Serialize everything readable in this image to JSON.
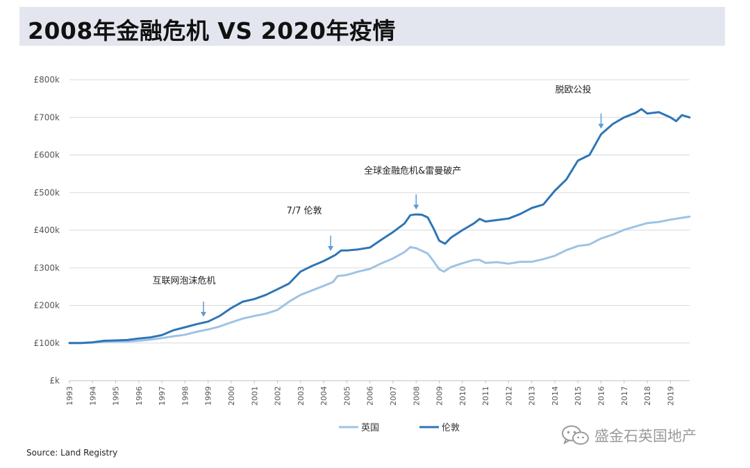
{
  "title": "2008年金融危机 VS 2020年疫情",
  "source": "Source: Land Registry",
  "watermark": "盛金石英国地产",
  "colors": {
    "uk": "#9dc3e6",
    "london": "#2e75b6",
    "arrow": "#5b9bd5",
    "grid": "#d9d9d9",
    "title_bg": "#e3e6ee"
  },
  "icons": {
    "watermark": "wechat-icon"
  },
  "chart_data": {
    "type": "line",
    "title": "2008年金融危机 VS 2020年疫情",
    "xlabel": "",
    "ylabel": "",
    "xlim": [
      1993,
      2019.83
    ],
    "ylim": [
      0,
      800000
    ],
    "yticks": [
      "£k",
      "£100k",
      "£200k",
      "£300k",
      "£400k",
      "£500k",
      "£600k",
      "£700k",
      "£800k"
    ],
    "xticks": [
      "1993",
      "1994",
      "1995",
      "1996",
      "1997",
      "1998",
      "1999",
      "2000",
      "2001",
      "2002",
      "2003",
      "2004",
      "2005",
      "2006",
      "2007",
      "2008",
      "2009",
      "2010",
      "2011",
      "2012",
      "2013",
      "2014",
      "2015",
      "2016",
      "2017",
      "2018",
      "2019"
    ],
    "grid": true,
    "legend": "bottom",
    "series": [
      {
        "name": "英国",
        "points": [
          [
            1993,
            100000
          ],
          [
            1993.5,
            100000
          ],
          [
            1994,
            101000
          ],
          [
            1994.5,
            103000
          ],
          [
            1995,
            104000
          ],
          [
            1995.5,
            104000
          ],
          [
            1996,
            106000
          ],
          [
            1996.5,
            109000
          ],
          [
            1997,
            113000
          ],
          [
            1997.5,
            118000
          ],
          [
            1998,
            122000
          ],
          [
            1998.5,
            130000
          ],
          [
            1999,
            136000
          ],
          [
            1999.5,
            144000
          ],
          [
            2000,
            155000
          ],
          [
            2000.5,
            165000
          ],
          [
            2001,
            172000
          ],
          [
            2001.5,
            178000
          ],
          [
            2002,
            188000
          ],
          [
            2002.5,
            210000
          ],
          [
            2003,
            228000
          ],
          [
            2003.5,
            240000
          ],
          [
            2004,
            252000
          ],
          [
            2004.4,
            262000
          ],
          [
            2004.6,
            278000
          ],
          [
            2005,
            281000
          ],
          [
            2005.5,
            290000
          ],
          [
            2006,
            297000
          ],
          [
            2006.5,
            312000
          ],
          [
            2007,
            325000
          ],
          [
            2007.5,
            342000
          ],
          [
            2007.75,
            355000
          ],
          [
            2008,
            352000
          ],
          [
            2008.25,
            345000
          ],
          [
            2008.5,
            338000
          ],
          [
            2008.75,
            318000
          ],
          [
            2009,
            296000
          ],
          [
            2009.2,
            290000
          ],
          [
            2009.5,
            302000
          ],
          [
            2010,
            312000
          ],
          [
            2010.5,
            321000
          ],
          [
            2010.75,
            321000
          ],
          [
            2011,
            313000
          ],
          [
            2011.5,
            315000
          ],
          [
            2012,
            311000
          ],
          [
            2012.5,
            316000
          ],
          [
            2013,
            316000
          ],
          [
            2013.5,
            323000
          ],
          [
            2014,
            332000
          ],
          [
            2014.5,
            347000
          ],
          [
            2015,
            358000
          ],
          [
            2015.5,
            362000
          ],
          [
            2016,
            378000
          ],
          [
            2016.5,
            388000
          ],
          [
            2017,
            401000
          ],
          [
            2017.5,
            410000
          ],
          [
            2018,
            419000
          ],
          [
            2018.5,
            422000
          ],
          [
            2019,
            428000
          ],
          [
            2019.5,
            433000
          ],
          [
            2019.83,
            436000
          ]
        ]
      },
      {
        "name": "伦敦",
        "points": [
          [
            1993,
            100000
          ],
          [
            1993.5,
            100000
          ],
          [
            1994,
            102000
          ],
          [
            1994.5,
            106000
          ],
          [
            1995,
            107000
          ],
          [
            1995.5,
            108000
          ],
          [
            1996,
            112000
          ],
          [
            1996.5,
            115000
          ],
          [
            1997,
            121000
          ],
          [
            1997.5,
            134000
          ],
          [
            1998,
            142000
          ],
          [
            1998.5,
            150000
          ],
          [
            1999,
            157000
          ],
          [
            1999.5,
            172000
          ],
          [
            2000,
            193000
          ],
          [
            2000.5,
            210000
          ],
          [
            2001,
            217000
          ],
          [
            2001.5,
            228000
          ],
          [
            2002,
            243000
          ],
          [
            2002.5,
            258000
          ],
          [
            2003,
            290000
          ],
          [
            2003.5,
            305000
          ],
          [
            2004,
            318000
          ],
          [
            2004.5,
            334000
          ],
          [
            2004.75,
            346000
          ],
          [
            2005,
            346000
          ],
          [
            2005.5,
            349000
          ],
          [
            2006,
            354000
          ],
          [
            2006.5,
            375000
          ],
          [
            2007,
            395000
          ],
          [
            2007.5,
            418000
          ],
          [
            2007.75,
            440000
          ],
          [
            2008,
            442000
          ],
          [
            2008.25,
            441000
          ],
          [
            2008.5,
            434000
          ],
          [
            2008.75,
            405000
          ],
          [
            2009,
            372000
          ],
          [
            2009.25,
            364000
          ],
          [
            2009.5,
            380000
          ],
          [
            2010,
            400000
          ],
          [
            2010.5,
            418000
          ],
          [
            2010.75,
            430000
          ],
          [
            2011,
            423000
          ],
          [
            2011.5,
            427000
          ],
          [
            2012,
            431000
          ],
          [
            2012.5,
            443000
          ],
          [
            2013,
            459000
          ],
          [
            2013.5,
            468000
          ],
          [
            2014,
            505000
          ],
          [
            2014.5,
            535000
          ],
          [
            2015,
            585000
          ],
          [
            2015.5,
            600000
          ],
          [
            2016,
            655000
          ],
          [
            2016.5,
            682000
          ],
          [
            2017,
            700000
          ],
          [
            2017.5,
            712000
          ],
          [
            2017.75,
            722000
          ],
          [
            2018,
            710000
          ],
          [
            2018.5,
            714000
          ],
          [
            2019,
            700000
          ],
          [
            2019.25,
            690000
          ],
          [
            2019.5,
            706000
          ],
          [
            2019.83,
            700000
          ]
        ]
      }
    ],
    "annotations": [
      {
        "text": "互联网泡沫危机",
        "x": 1998.8,
        "y": 155000
      },
      {
        "text": "7/7 伦敦",
        "x": 2004.3,
        "y": 330000
      },
      {
        "text": "全球金融危机&雷曼破产",
        "x": 2008.0,
        "y": 440000
      },
      {
        "text": "脱欧公投",
        "x": 2016.0,
        "y": 655000
      }
    ]
  }
}
